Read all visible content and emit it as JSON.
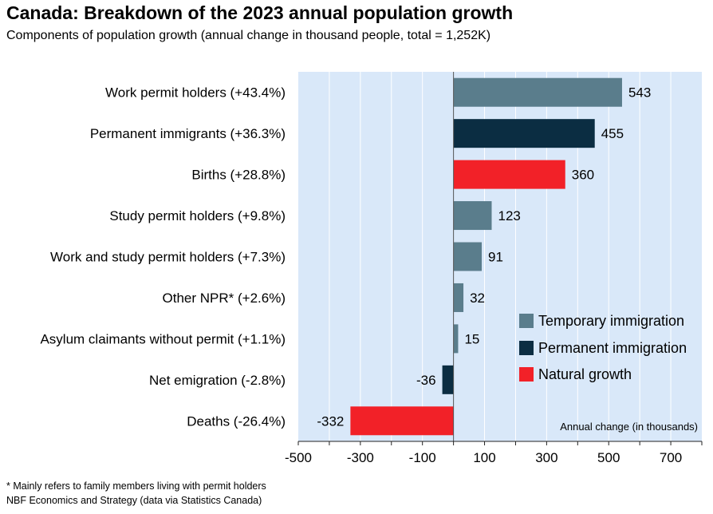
{
  "header": {
    "title": "Canada: Breakdown of the 2023 annual population growth",
    "subtitle": "Components of population growth (annual change in thousand people, total = 1,252K)"
  },
  "footer": {
    "note": "* Mainly refers to family members living with permit holders",
    "source": "NBF Economics and Strategy (data via Statistics Canada)"
  },
  "colors": {
    "plot_bg": "#d9e8f9",
    "grid": "#ffffff",
    "temporary": "#5a7d8c",
    "permanent": "#0b2d42",
    "natural": "#f22128"
  },
  "chart_data": {
    "type": "bar",
    "orientation": "horizontal",
    "title": "Canada: Breakdown of the 2023 annual population growth",
    "subtitle": "Components of population growth (annual change in thousand people, total = 1,252K)",
    "xlabel": "Annual change (in thousands)",
    "xlim": [
      -500,
      800
    ],
    "xticks": [
      -500,
      -300,
      -100,
      100,
      300,
      500,
      700
    ],
    "grid": true,
    "legend_position": "right",
    "categories": [
      "Work permit holders (+43.4%)",
      "Permanent immigrants (+36.3%)",
      "Births (+28.8%)",
      "Study permit holders (+9.8%)",
      "Work and study permit holders (+7.3%)",
      "Other NPR* (+2.6%)",
      "Asylum claimants without permit (+1.1%)",
      "Net emigration (-2.8%)",
      "Deaths (-26.4%)"
    ],
    "values": [
      543,
      455,
      360,
      123,
      91,
      32,
      15,
      -36,
      -332
    ],
    "groups": [
      "temporary",
      "permanent",
      "natural",
      "temporary",
      "temporary",
      "temporary",
      "temporary",
      "permanent",
      "natural"
    ],
    "legend": [
      {
        "key": "temporary",
        "label": "Temporary immigration"
      },
      {
        "key": "permanent",
        "label": "Permanent immigration"
      },
      {
        "key": "natural",
        "label": "Natural growth"
      }
    ]
  }
}
